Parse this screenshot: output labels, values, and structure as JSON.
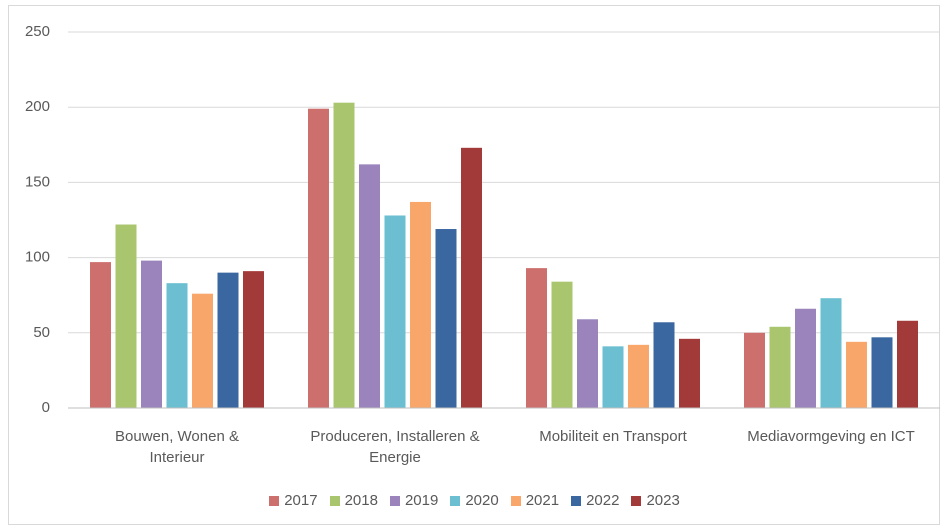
{
  "chart_data": {
    "type": "bar",
    "categories": [
      "Bouwen, Wonen & Interieur",
      "Produceren, Installeren & Energie",
      "Mobiliteit en Transport",
      "Mediavormgeving en ICT"
    ],
    "series": [
      {
        "name": "2017",
        "color": "#cd6f6c",
        "values": [
          97,
          199,
          93,
          50
        ]
      },
      {
        "name": "2018",
        "color": "#a9c66e",
        "values": [
          122,
          203,
          84,
          54
        ]
      },
      {
        "name": "2019",
        "color": "#9b84bb",
        "values": [
          98,
          162,
          59,
          66
        ]
      },
      {
        "name": "2020",
        "color": "#6bbfd0",
        "values": [
          83,
          128,
          41,
          73
        ]
      },
      {
        "name": "2021",
        "color": "#f8a66a",
        "values": [
          76,
          137,
          42,
          44
        ]
      },
      {
        "name": "2022",
        "color": "#3a679f",
        "values": [
          90,
          119,
          57,
          47
        ]
      },
      {
        "name": "2023",
        "color": "#a33a3a",
        "values": [
          91,
          173,
          46,
          58
        ]
      }
    ],
    "ylim": [
      0,
      250
    ],
    "yticks": [
      0,
      50,
      100,
      150,
      200,
      250
    ],
    "grid": true,
    "legend": "bottom"
  }
}
